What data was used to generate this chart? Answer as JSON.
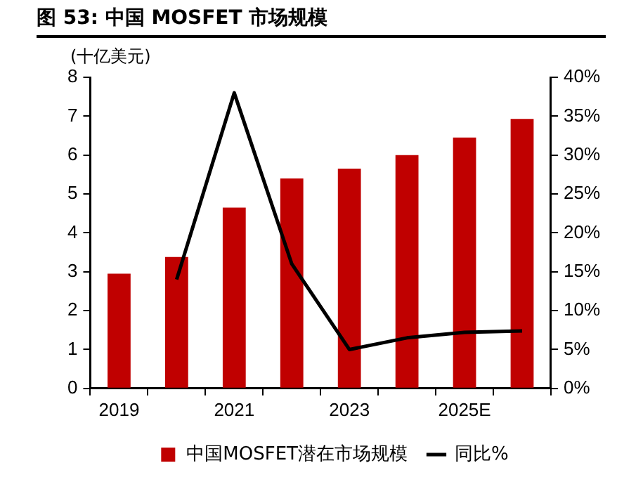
{
  "chart_data": {
    "type": "bar",
    "title": "图 53: 中国 MOSFET 市场规模",
    "ylabel": "(十亿美元)",
    "categories": [
      "2019",
      null,
      "2021",
      null,
      "2023",
      null,
      "2025E",
      null
    ],
    "series": [
      {
        "name": "中国MOSFET潜在市场规模",
        "color": "#c00000",
        "values": [
          2.95,
          3.38,
          4.65,
          5.4,
          5.65,
          6.0,
          6.45,
          6.93
        ]
      },
      {
        "name": "同比%",
        "type": "line",
        "axis": "y2",
        "color": "#000000",
        "values": [
          null,
          14,
          38,
          16,
          5,
          6.5,
          7.2,
          7.4
        ]
      }
    ],
    "ylim": [
      0,
      8
    ],
    "yticks": [
      0,
      1,
      2,
      3,
      4,
      5,
      6,
      7,
      8
    ],
    "y2lim": [
      0,
      40
    ],
    "y2ticks": [
      {
        "value": 0,
        "label": "0%"
      },
      {
        "value": 5,
        "label": "5%"
      },
      {
        "value": 10,
        "label": "10%"
      },
      {
        "value": 15,
        "label": "15%"
      },
      {
        "value": 20,
        "label": "20%"
      },
      {
        "value": 25,
        "label": "25%"
      },
      {
        "value": 30,
        "label": "30%"
      },
      {
        "value": 35,
        "label": "35%"
      },
      {
        "value": 40,
        "label": "40%"
      }
    ],
    "grid": false,
    "legend": "bottom",
    "marker": "none",
    "line_style": "solid"
  }
}
